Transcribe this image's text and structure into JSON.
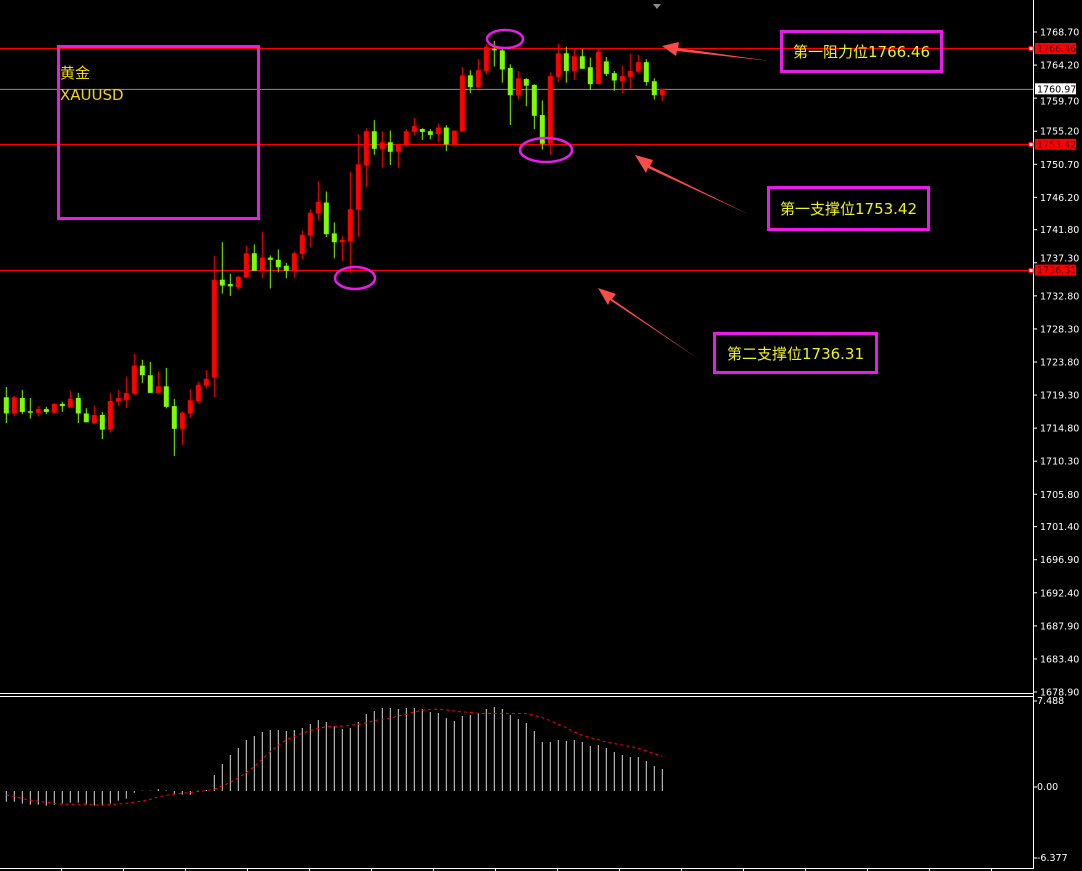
{
  "chart_data": {
    "type": "candlestick",
    "symbol_note": {
      "name_cn": "黄金",
      "symbol": "XAUUSD"
    },
    "price_axis": {
      "ticks": [
        1768.7,
        1764.2,
        1759.7,
        1755.2,
        1750.7,
        1746.2,
        1741.8,
        1737.3,
        1732.8,
        1728.3,
        1723.8,
        1719.3,
        1714.8,
        1710.3,
        1705.8,
        1701.4,
        1696.9,
        1692.4,
        1687.9,
        1683.4,
        1678.9
      ],
      "ylim": [
        1678.9,
        1768.7
      ]
    },
    "current_price": "1760.97",
    "levels": [
      {
        "price": 1766.46,
        "tag": "1766.46",
        "label": "第一阻力位1766.46"
      },
      {
        "price": 1753.42,
        "tag": "1753.42",
        "label": "第一支撑位1753.42"
      },
      {
        "price": 1736.31,
        "tag": "1736.31",
        "label": "第二支撑位1736.31"
      }
    ],
    "colors": {
      "up": "#ff0000",
      "down": "#7dfc00",
      "level_line": "#ff0000",
      "annotation": "#e81ce8",
      "label_text": "#f2f21a",
      "arrow": "#ff4a4a",
      "macd_hist": "#d8d8d8",
      "macd_signal": "#ff0000"
    },
    "ohlc_format": [
      "open",
      "high",
      "low",
      "close"
    ],
    "candles": [
      [
        1719.0,
        1720.4,
        1715.5,
        1716.8
      ],
      [
        1716.8,
        1719.2,
        1716.4,
        1719.0
      ],
      [
        1718.9,
        1720.0,
        1716.7,
        1717.0
      ],
      [
        1717.1,
        1718.9,
        1716.1,
        1716.9
      ],
      [
        1716.9,
        1717.8,
        1716.4,
        1717.4
      ],
      [
        1717.4,
        1717.7,
        1716.7,
        1717.0
      ],
      [
        1716.9,
        1718.2,
        1716.8,
        1718.1
      ],
      [
        1718.1,
        1718.4,
        1717.0,
        1717.8
      ],
      [
        1717.6,
        1719.9,
        1717.6,
        1718.8
      ],
      [
        1718.9,
        1719.6,
        1715.5,
        1716.8
      ],
      [
        1716.8,
        1717.5,
        1715.6,
        1715.6
      ],
      [
        1715.5,
        1717.9,
        1715.4,
        1716.6
      ],
      [
        1716.6,
        1717.0,
        1713.3,
        1714.6
      ],
      [
        1714.6,
        1719.6,
        1714.2,
        1718.5
      ],
      [
        1718.4,
        1720.0,
        1717.9,
        1718.9
      ],
      [
        1718.6,
        1721.8,
        1717.5,
        1719.6
      ],
      [
        1719.5,
        1724.9,
        1719.3,
        1723.3
      ],
      [
        1723.3,
        1724.1,
        1720.95,
        1722.0
      ],
      [
        1722.0,
        1723.8,
        1719.6,
        1719.6
      ],
      [
        1719.6,
        1722.5,
        1719.6,
        1720.5
      ],
      [
        1720.5,
        1723.0,
        1717.5,
        1717.7
      ],
      [
        1717.8,
        1718.8,
        1711.0,
        1714.7
      ],
      [
        1714.7,
        1717.1,
        1712.5,
        1716.9
      ],
      [
        1716.8,
        1720.1,
        1716.2,
        1718.6
      ],
      [
        1718.5,
        1721.1,
        1718.1,
        1720.7
      ],
      [
        1720.6,
        1722.7,
        1720.2,
        1721.5
      ],
      [
        1721.7,
        1738.2,
        1719.0,
        1735.0
      ],
      [
        1735.0,
        1740.1,
        1733.1,
        1734.2
      ],
      [
        1734.4,
        1735.8,
        1732.8,
        1734.1
      ],
      [
        1734.0,
        1735.5,
        1733.6,
        1735.4
      ],
      [
        1735.3,
        1739.6,
        1735.3,
        1738.6
      ],
      [
        1738.6,
        1739.8,
        1736.2,
        1736.2
      ],
      [
        1736.2,
        1741.5,
        1735.2,
        1738.0
      ],
      [
        1738.0,
        1738.3,
        1733.8,
        1737.7
      ],
      [
        1737.7,
        1739.1,
        1736.0,
        1736.7
      ],
      [
        1736.9,
        1737.3,
        1735.2,
        1736.2
      ],
      [
        1736.2,
        1738.8,
        1735.2,
        1738.6
      ],
      [
        1738.5,
        1741.7,
        1737.8,
        1741.1
      ],
      [
        1741.0,
        1744.6,
        1739.4,
        1744.1
      ],
      [
        1744.0,
        1748.4,
        1743.1,
        1745.6
      ],
      [
        1745.5,
        1747.0,
        1740.8,
        1741.2
      ],
      [
        1741.3,
        1742.8,
        1737.9,
        1740.1
      ],
      [
        1740.1,
        1740.9,
        1737.5,
        1740.4
      ],
      [
        1740.2,
        1749.7,
        1735.9,
        1744.6
      ],
      [
        1744.5,
        1754.8,
        1740.8,
        1750.7
      ],
      [
        1750.6,
        1755.6,
        1747.6,
        1755.2
      ],
      [
        1755.2,
        1756.7,
        1752.0,
        1752.8
      ],
      [
        1752.8,
        1755.2,
        1750.3,
        1753.7
      ],
      [
        1753.7,
        1755.3,
        1750.6,
        1752.4
      ],
      [
        1752.4,
        1753.4,
        1750.2,
        1753.4
      ],
      [
        1753.4,
        1755.5,
        1753.1,
        1755.2
      ],
      [
        1755.1,
        1757.0,
        1754.6,
        1755.9
      ],
      [
        1755.5,
        1755.6,
        1754.0,
        1755.1
      ],
      [
        1755.2,
        1755.5,
        1754.1,
        1754.7
      ],
      [
        1754.8,
        1756.2,
        1753.7,
        1755.7
      ],
      [
        1755.7,
        1756.0,
        1752.5,
        1753.4
      ],
      [
        1753.3,
        1755.3,
        1753.2,
        1755.3
      ],
      [
        1755.2,
        1763.9,
        1755.1,
        1762.8
      ],
      [
        1762.8,
        1763.5,
        1760.4,
        1761.2
      ],
      [
        1761.2,
        1765.0,
        1760.97,
        1763.5
      ],
      [
        1763.4,
        1767.1,
        1762.9,
        1766.7
      ],
      [
        1766.4,
        1767.5,
        1764.0,
        1766.2
      ],
      [
        1766.2,
        1766.7,
        1761.8,
        1763.6
      ],
      [
        1763.8,
        1764.3,
        1756.05,
        1760.1
      ],
      [
        1760.1,
        1763.4,
        1759.5,
        1762.4
      ],
      [
        1762.3,
        1762.4,
        1758.6,
        1761.4
      ],
      [
        1761.5,
        1761.6,
        1755.5,
        1757.3
      ],
      [
        1757.4,
        1759.4,
        1752.7,
        1753.5
      ],
      [
        1753.5,
        1763.2,
        1752.0,
        1762.7
      ],
      [
        1762.6,
        1767.1,
        1761.9,
        1765.8
      ],
      [
        1765.8,
        1766.7,
        1761.8,
        1763.4
      ],
      [
        1763.4,
        1766.5,
        1762.2,
        1765.4
      ],
      [
        1765.4,
        1766.4,
        1763.7,
        1763.7
      ],
      [
        1763.9,
        1765.2,
        1760.8,
        1761.6
      ],
      [
        1761.6,
        1766.5,
        1761.6,
        1766.0
      ],
      [
        1764.7,
        1765.3,
        1762.7,
        1763.0
      ],
      [
        1763.1,
        1763.4,
        1760.7,
        1762.1
      ],
      [
        1762.0,
        1764.1,
        1760.4,
        1762.7
      ],
      [
        1762.6,
        1765.7,
        1760.97,
        1763.4
      ],
      [
        1763.3,
        1765.6,
        1763.1,
        1764.6
      ],
      [
        1764.6,
        1765.0,
        1761.4,
        1761.9
      ],
      [
        1762.0,
        1762.4,
        1759.5,
        1760.1
      ],
      [
        1760.1,
        1761.0,
        1759.3,
        1760.97
      ]
    ],
    "indicator": {
      "type": "macd",
      "axis_labels": [
        "7.488",
        "0.00",
        "-6.377"
      ],
      "ylim": [
        -6.377,
        7.488
      ],
      "histogram": [
        -0.87,
        -0.87,
        -1.03,
        -1.11,
        -1.11,
        -1.19,
        -1.11,
        -1.03,
        -0.95,
        -0.95,
        -1.11,
        -1.19,
        -1.19,
        -1.03,
        -0.79,
        -0.62,
        -0.14,
        0.03,
        0.03,
        0.16,
        0,
        -0.24,
        -0.3,
        -0.3,
        0.03,
        0.08,
        1.3,
        2.2,
        2.93,
        3.5,
        4.15,
        4.47,
        4.8,
        4.96,
        4.96,
        4.88,
        4.96,
        5.12,
        5.45,
        5.77,
        5.61,
        5.28,
        5.04,
        5.12,
        5.61,
        6.26,
        6.5,
        6.75,
        6.75,
        6.67,
        6.75,
        6.75,
        6.67,
        6.42,
        6.34,
        5.93,
        5.69,
        6.1,
        6.18,
        6.34,
        6.67,
        6.83,
        6.67,
        6.18,
        5.85,
        5.53,
        4.88,
        3.98,
        3.98,
        4.15,
        4.07,
        4.15,
        3.98,
        3.66,
        3.74,
        3.5,
        3.17,
        2.93,
        2.76,
        2.76,
        2.44,
        2.03,
        1.79
      ],
      "signal": [
        -0.33,
        -0.43,
        -0.62,
        -0.76,
        -0.84,
        -0.92,
        -1.0,
        -1.08,
        -1.08,
        -1.08,
        -1.08,
        -1.14,
        -1.14,
        -1.11,
        -1.06,
        -1.0,
        -0.92,
        -0.81,
        -0.68,
        -0.49,
        -0.35,
        -0.27,
        -0.19,
        -0.11,
        -0.03,
        0.03,
        0.14,
        0.41,
        0.7,
        1.08,
        1.49,
        1.98,
        2.57,
        3.2,
        3.74,
        4.15,
        4.44,
        4.69,
        4.91,
        5.09,
        5.23,
        5.26,
        5.28,
        5.34,
        5.42,
        5.53,
        5.72,
        5.83,
        5.91,
        6.1,
        6.23,
        6.42,
        6.56,
        6.64,
        6.64,
        6.59,
        6.5,
        6.42,
        6.4,
        6.31,
        6.31,
        6.31,
        6.31,
        6.31,
        6.31,
        6.29,
        6.15,
        5.96,
        5.72,
        5.42,
        5.15,
        4.8,
        4.53,
        4.34,
        4.17,
        3.98,
        3.85,
        3.74,
        3.63,
        3.47,
        3.25,
        3.04,
        2.82
      ]
    }
  }
}
